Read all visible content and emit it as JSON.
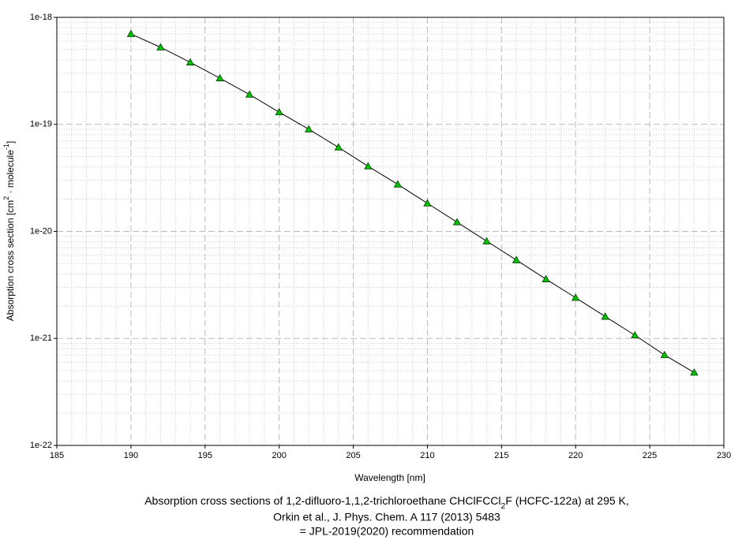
{
  "chart_data": {
    "type": "line",
    "x_label": "Wavelength [nm]",
    "y_label": [
      "Absorption cross section [cm",
      "2",
      " · molecule",
      "-1",
      "]"
    ],
    "caption": [
      [
        "Absorption cross sections of 1,2-difluoro-1,1,2-trichloroethane CHClFCCl",
        "2",
        "F (HCFC-122a) at 295 K,"
      ],
      "Orkin et al., J. Phys. Chem. A 117 (2013) 5483",
      "= JPL-2019(2020) recommendation"
    ],
    "x": [
      190,
      192,
      194,
      196,
      198,
      200,
      202,
      204,
      206,
      208,
      210,
      212,
      214,
      216,
      218,
      220,
      222,
      224,
      226,
      228
    ],
    "series": [
      {
        "color": "#00c000",
        "line_color": "#000000",
        "values": [
          7e-19,
          5.25e-19,
          3.8e-19,
          2.7e-19,
          1.9e-19,
          1.3e-19,
          9e-20,
          6.1e-20,
          4.06e-20,
          2.75e-20,
          1.83e-20,
          1.22e-20,
          8.1e-21,
          5.4e-21,
          3.58e-21,
          2.4e-21,
          1.6e-21,
          1.07e-21,
          7e-22,
          4.8e-22
        ]
      }
    ],
    "xlim": [
      185,
      230
    ],
    "xticks": [
      185,
      190,
      195,
      200,
      205,
      210,
      215,
      220,
      225,
      230
    ],
    "ylim": [
      1e-22,
      1e-18
    ],
    "yticks": [
      {
        "value": 1e-22,
        "label": "1e-22"
      },
      {
        "value": 1e-21,
        "label": "1e-21"
      },
      {
        "value": 1e-20,
        "label": "1e-20"
      },
      {
        "value": 1e-19,
        "label": "1e-19"
      },
      {
        "value": 1e-18,
        "label": "1e-18"
      }
    ],
    "y_scale": "log",
    "grid": true
  }
}
